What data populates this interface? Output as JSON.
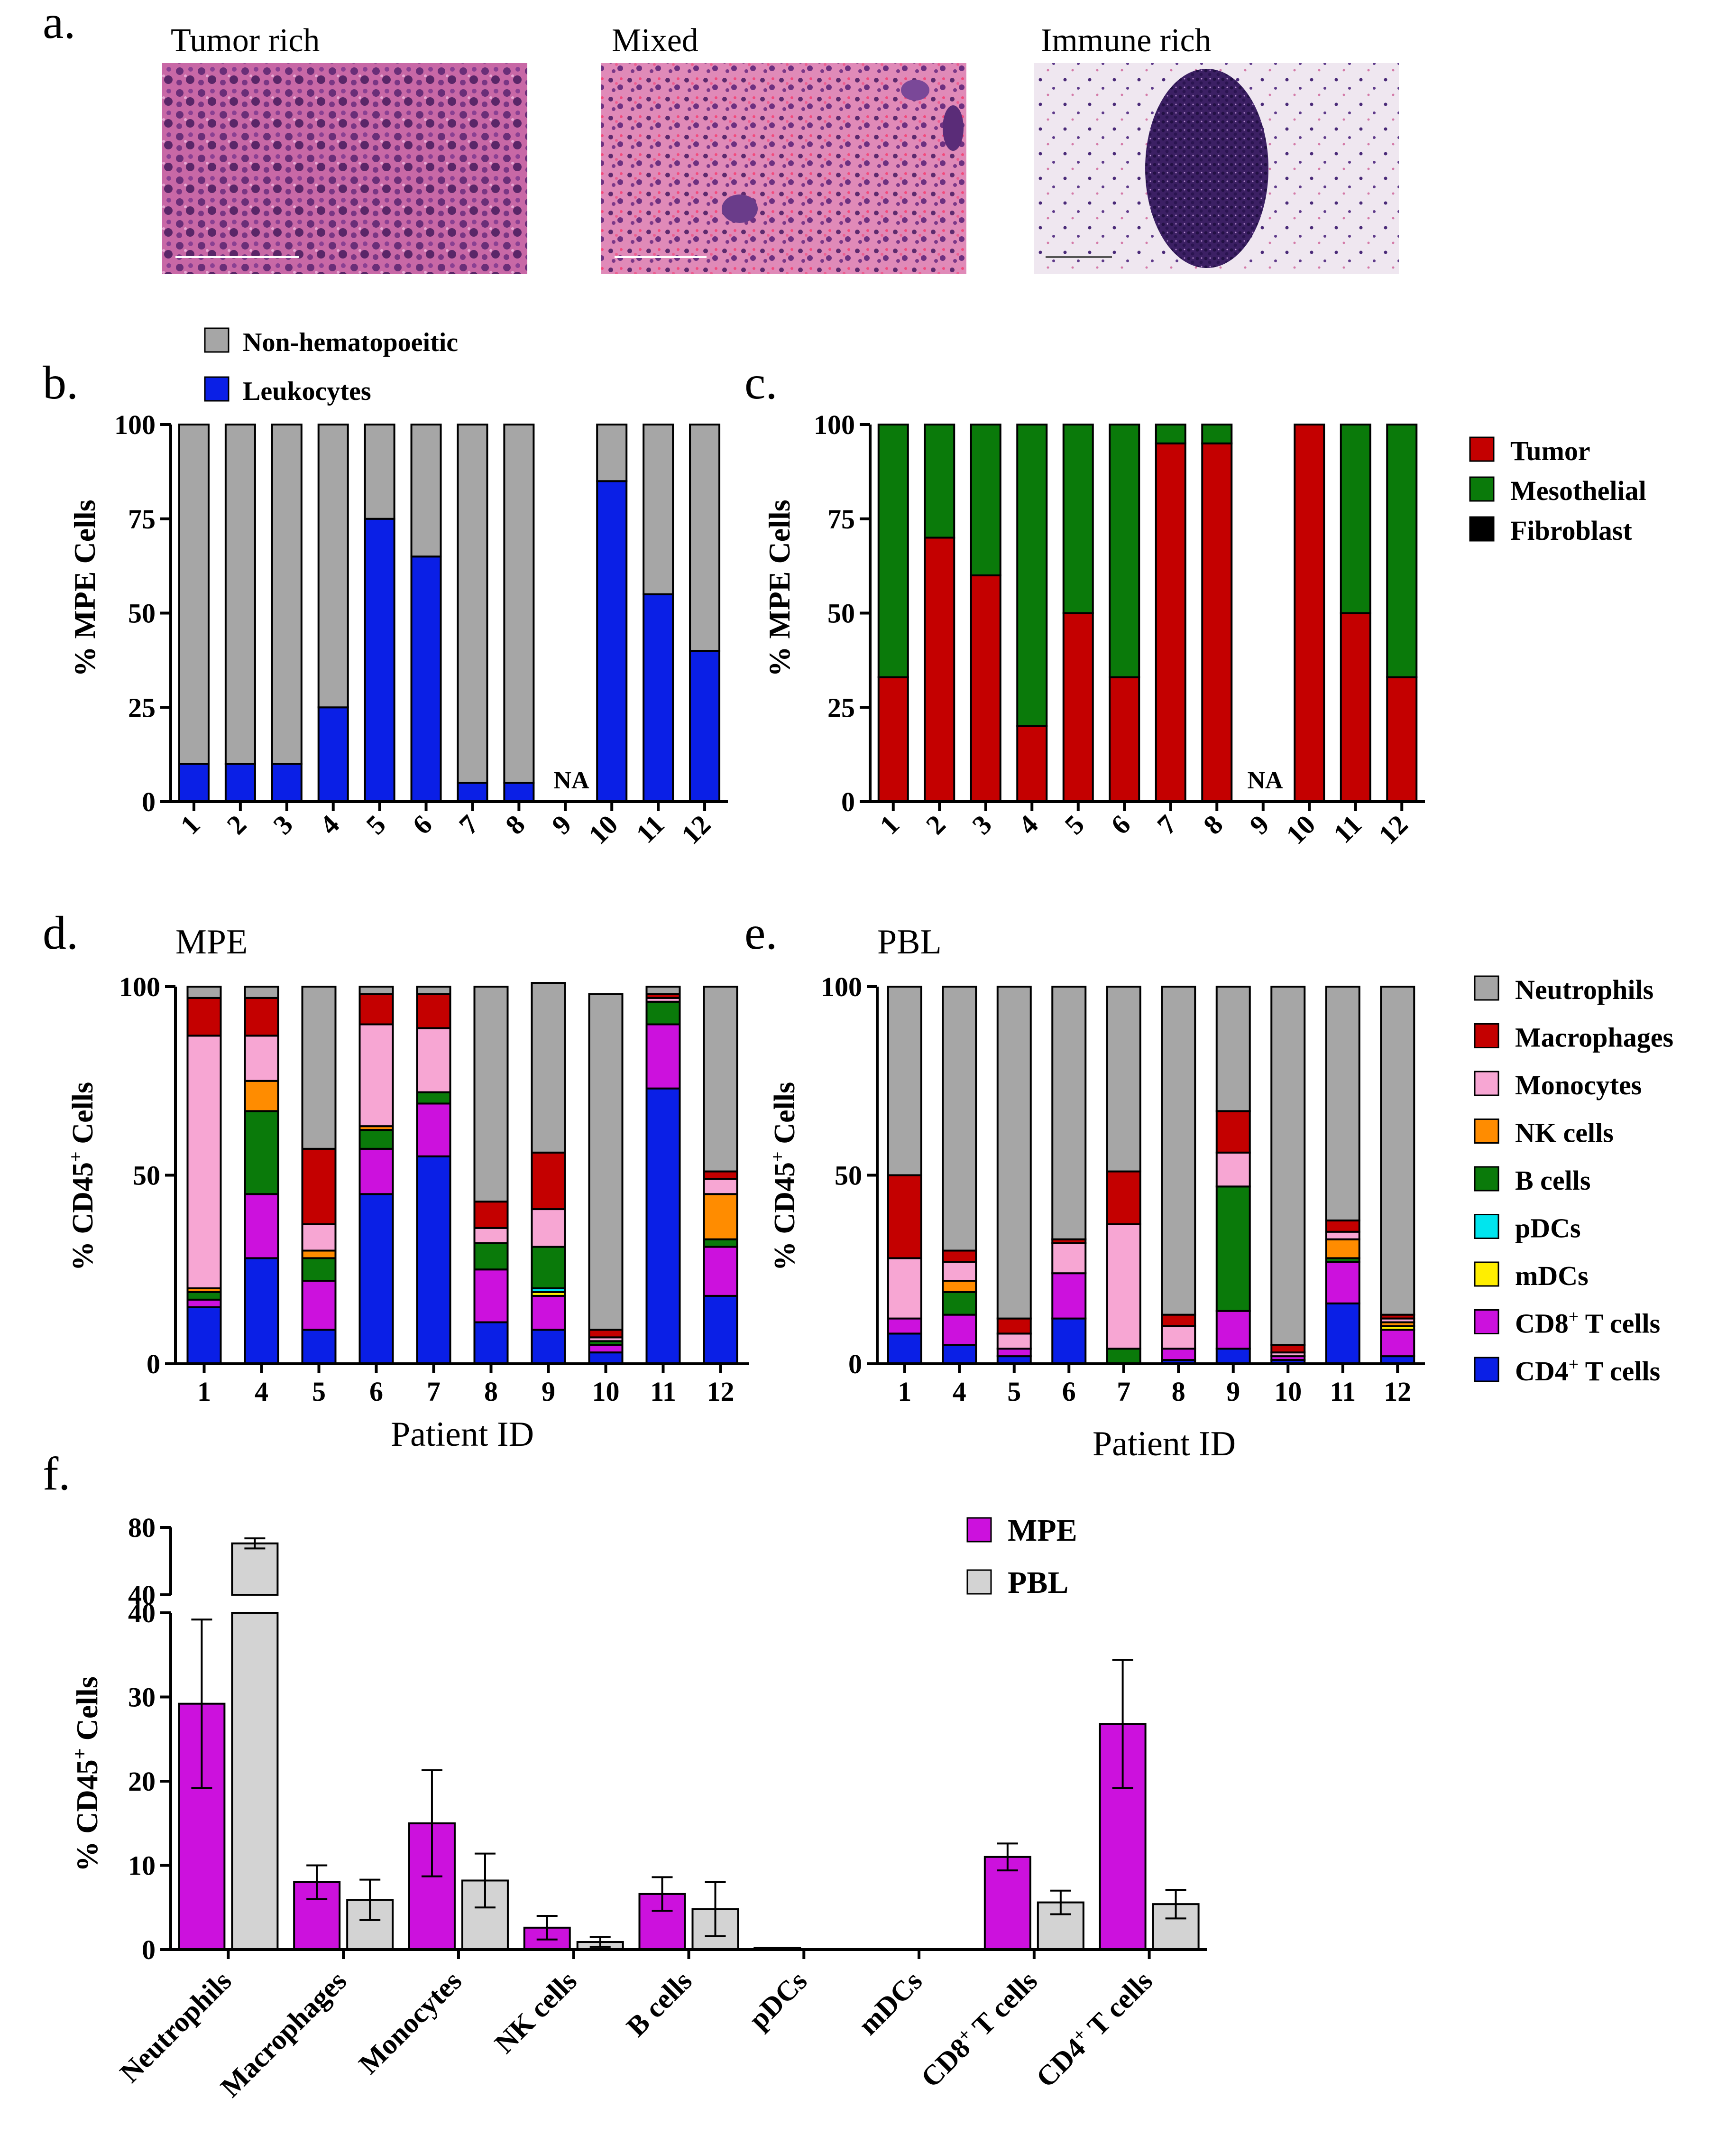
{
  "panel_letters": [
    "a.",
    "b.",
    "c.",
    "d.",
    "e.",
    "f."
  ],
  "histology": [
    {
      "title": "Tumor rich",
      "image": "tumor-rich-hne-micrograph"
    },
    {
      "title": "Mixed",
      "image": "mixed-hne-micrograph"
    },
    {
      "title": "Immune rich",
      "image": "immune-rich-hne-micrograph"
    }
  ],
  "colors": {
    "gray": "#a6a6a6",
    "blue": "#0a1fe6",
    "red": "#c40000",
    "green": "#0a7a0a",
    "black": "#000000",
    "pink": "#f7a6d3",
    "orange": "#ff8c00",
    "cyan": "#00e5ee",
    "yellow": "#ffee00",
    "magenta": "#cc11dd",
    "lightgray": "#d3d3d3"
  },
  "chart_data": [
    {
      "id": "b",
      "type": "bar",
      "stacked": true,
      "ylabel": "% MPE Cells",
      "ylim": [
        0,
        100
      ],
      "yticks": [
        0,
        25,
        50,
        75,
        100
      ],
      "categories": [
        "1",
        "2",
        "3",
        "4",
        "5",
        "6",
        "7",
        "8",
        "9",
        "10",
        "11",
        "12"
      ],
      "series": [
        {
          "name": "Leukocytes",
          "color": "#0a1fe6",
          "values": [
            10,
            10,
            10,
            25,
            75,
            65,
            5,
            5,
            null,
            85,
            55,
            40
          ]
        },
        {
          "name": "Non-hematopoeitic",
          "color": "#a6a6a6",
          "values": [
            90,
            90,
            90,
            75,
            25,
            35,
            95,
            95,
            null,
            15,
            45,
            60
          ]
        }
      ],
      "legend": [
        "Non-hematopoeitic",
        "Leukocytes"
      ],
      "annotation": "NA"
    },
    {
      "id": "c",
      "type": "bar",
      "stacked": true,
      "ylabel": "% MPE Cells",
      "ylim": [
        0,
        100
      ],
      "yticks": [
        0,
        25,
        50,
        75,
        100
      ],
      "categories": [
        "1",
        "2",
        "3",
        "4",
        "5",
        "6",
        "7",
        "8",
        "9",
        "10",
        "11",
        "12"
      ],
      "series": [
        {
          "name": "Tumor",
          "color": "#c40000",
          "values": [
            33,
            70,
            60,
            20,
            50,
            33,
            95,
            95,
            null,
            100,
            50,
            33
          ]
        },
        {
          "name": "Mesothelial",
          "color": "#0a7a0a",
          "values": [
            67,
            30,
            40,
            80,
            50,
            67,
            5,
            5,
            null,
            0,
            50,
            67
          ]
        },
        {
          "name": "Fibroblast",
          "color": "#000000",
          "values": [
            0,
            0,
            0,
            0,
            0,
            0,
            0,
            0,
            null,
            0,
            0,
            0
          ]
        }
      ],
      "legend": [
        "Tumor",
        "Mesothelial",
        "Fibroblast"
      ],
      "annotation": "NA"
    },
    {
      "id": "d",
      "type": "bar",
      "stacked": true,
      "title": "MPE",
      "ylabel": "% CD45+ Cells",
      "xlabel": "Patient ID",
      "ylim": [
        0,
        100
      ],
      "yticks": [
        0,
        50,
        100
      ],
      "categories": [
        "1",
        "4",
        "5",
        "6",
        "7",
        "8",
        "9",
        "10",
        "11",
        "12"
      ],
      "series": [
        {
          "name": "CD4+ T cells",
          "color": "#0a1fe6",
          "values": [
            15,
            28,
            9,
            45,
            55,
            11,
            9,
            3,
            73,
            18
          ]
        },
        {
          "name": "CD8+ T cells",
          "color": "#cc11dd",
          "values": [
            2,
            17,
            13,
            12,
            14,
            14,
            9,
            2,
            17,
            13
          ]
        },
        {
          "name": "mDCs",
          "color": "#ffee00",
          "values": [
            0,
            0,
            0,
            0,
            0,
            0,
            1,
            0,
            0,
            0
          ]
        },
        {
          "name": "pDCs",
          "color": "#00e5ee",
          "values": [
            0,
            0,
            0,
            0,
            0,
            0,
            1,
            0,
            0,
            0
          ]
        },
        {
          "name": "B cells",
          "color": "#0a7a0a",
          "values": [
            2,
            22,
            6,
            5,
            3,
            7,
            11,
            1,
            6,
            2
          ]
        },
        {
          "name": "NK cells",
          "color": "#ff8c00",
          "values": [
            1,
            8,
            2,
            1,
            0,
            0,
            0,
            0,
            0,
            12
          ]
        },
        {
          "name": "Monocytes",
          "color": "#f7a6d3",
          "values": [
            67,
            12,
            7,
            27,
            17,
            4,
            10,
            1,
            1,
            4
          ]
        },
        {
          "name": "Macrophages",
          "color": "#c40000",
          "values": [
            10,
            10,
            20,
            8,
            9,
            7,
            15,
            2,
            1,
            2
          ]
        },
        {
          "name": "Neutrophils",
          "color": "#a6a6a6",
          "values": [
            3,
            3,
            43,
            2,
            2,
            57,
            45,
            89,
            2,
            49
          ]
        }
      ]
    },
    {
      "id": "e",
      "type": "bar",
      "stacked": true,
      "title": "PBL",
      "ylabel": "% CD45+ Cells",
      "xlabel": "Patient ID",
      "ylim": [
        0,
        100
      ],
      "yticks": [
        0,
        50,
        100
      ],
      "categories": [
        "1",
        "4",
        "5",
        "6",
        "7",
        "8",
        "9",
        "10",
        "11",
        "12"
      ],
      "series": [
        {
          "name": "CD4+ T cells",
          "color": "#0a1fe6",
          "values": [
            8,
            5,
            2,
            12,
            0,
            1,
            4,
            1,
            16,
            2
          ]
        },
        {
          "name": "CD8+ T cells",
          "color": "#cc11dd",
          "values": [
            4,
            8,
            2,
            12,
            0,
            3,
            10,
            1,
            11,
            7
          ]
        },
        {
          "name": "mDCs",
          "color": "#ffee00",
          "values": [
            0,
            0,
            0,
            0,
            0,
            0,
            0,
            0,
            0,
            1
          ]
        },
        {
          "name": "pDCs",
          "color": "#00e5ee",
          "values": [
            0,
            0,
            0,
            0,
            0,
            0,
            0,
            0,
            0,
            0
          ]
        },
        {
          "name": "B cells",
          "color": "#0a7a0a",
          "values": [
            0,
            6,
            0,
            0,
            4,
            0,
            33,
            0,
            1,
            0
          ]
        },
        {
          "name": "NK cells",
          "color": "#ff8c00",
          "values": [
            0,
            3,
            0,
            0,
            0,
            0,
            0,
            0,
            5,
            1
          ]
        },
        {
          "name": "Monocytes",
          "color": "#f7a6d3",
          "values": [
            16,
            5,
            4,
            8,
            33,
            6,
            9,
            1,
            2,
            1
          ]
        },
        {
          "name": "Macrophages",
          "color": "#c40000",
          "values": [
            22,
            3,
            4,
            1,
            14,
            3,
            11,
            2,
            3,
            1
          ]
        },
        {
          "name": "Neutrophils",
          "color": "#a6a6a6",
          "values": [
            50,
            70,
            88,
            67,
            49,
            87,
            33,
            95,
            62,
            87
          ]
        }
      ]
    },
    {
      "id": "f",
      "type": "bar",
      "grouped": true,
      "ylabel": "% CD45+ Cells",
      "ylim_lower": [
        0,
        40
      ],
      "ylim_upper": [
        40,
        80
      ],
      "yticks_lower": [
        0,
        10,
        20,
        30,
        40
      ],
      "yticks_upper": [
        40,
        80
      ],
      "categories": [
        "Neutrophils",
        "Macrophages",
        "Monocytes",
        "NK cells",
        "B cells",
        "pDCs",
        "mDCs",
        "CD8+ T cells",
        "CD4+ T cells"
      ],
      "series": [
        {
          "name": "MPE",
          "color": "#cc11dd",
          "values": [
            29.2,
            8.0,
            15.0,
            2.6,
            6.6,
            0.2,
            0,
            11.0,
            26.8
          ],
          "errors": [
            10.0,
            2.0,
            6.3,
            1.4,
            2.0,
            0,
            0,
            1.6,
            7.6
          ]
        },
        {
          "name": "PBL",
          "color": "#d3d3d3",
          "values": [
            70.5,
            5.9,
            8.2,
            0.9,
            4.8,
            0,
            0,
            5.6,
            5.4
          ],
          "errors": [
            3.0,
            2.4,
            3.2,
            0.6,
            3.2,
            0,
            0,
            1.4,
            1.7
          ]
        }
      ],
      "legend": [
        "MPE",
        "PBL"
      ]
    }
  ],
  "legend_de": [
    "Neutrophils",
    "Macrophages",
    "Monocytes",
    "NK cells",
    "B cells",
    "pDCs",
    "mDCs",
    "CD8+ T cells",
    "CD4+ T cells"
  ]
}
